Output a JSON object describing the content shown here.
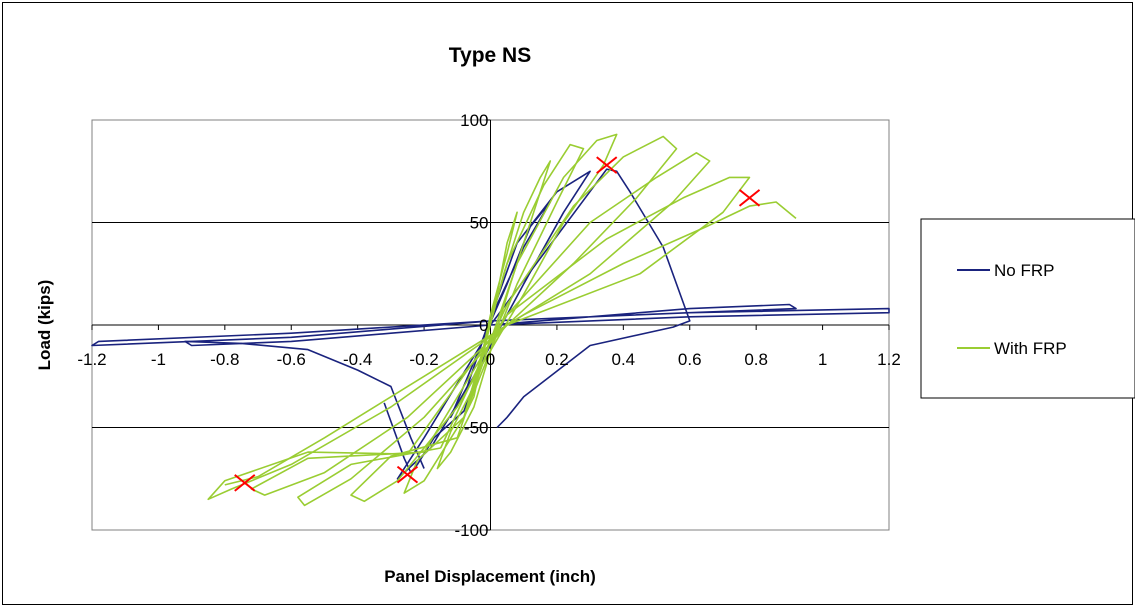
{
  "chart_data": {
    "type": "line",
    "title": "Type NS",
    "xlabel": "Panel Displacement (inch)",
    "ylabel": "Load (kips)",
    "xlim": [
      -1.2,
      1.2
    ],
    "ylim": [
      -100,
      100
    ],
    "x_ticks": [
      "-1.2",
      "-1",
      "-0.8",
      "-0.6",
      "-0.4",
      "-0.2",
      "0",
      "0.2",
      "0.4",
      "0.6",
      "0.8",
      "1",
      "1.2"
    ],
    "x_tick_values": [
      -1.2,
      -1,
      -0.8,
      -0.6,
      -0.4,
      -0.2,
      0,
      0.2,
      0.4,
      0.6,
      0.8,
      1,
      1.2
    ],
    "y_ticks": [
      "-100",
      "-50",
      "0",
      "50",
      "100"
    ],
    "y_tick_values": [
      -100,
      -50,
      0,
      50,
      100
    ],
    "grid": "horizontal",
    "legend_position": "right",
    "series": [
      {
        "name": "No FRP",
        "color": "#1a237e",
        "loops": [
          [
            [
              -0.02,
              -6
            ],
            [
              0.05,
              20
            ],
            [
              0.12,
              48
            ],
            [
              0.18,
              60
            ],
            [
              0.1,
              38
            ],
            [
              0.02,
              10
            ],
            [
              -0.05,
              -18
            ],
            [
              -0.12,
              -45
            ],
            [
              -0.07,
              -30
            ],
            [
              -0.02,
              -6
            ]
          ],
          [
            [
              -0.03,
              -10
            ],
            [
              0.08,
              40
            ],
            [
              0.2,
              65
            ],
            [
              0.3,
              75
            ],
            [
              0.22,
              55
            ],
            [
              0.1,
              20
            ],
            [
              -0.05,
              -25
            ],
            [
              -0.18,
              -60
            ],
            [
              -0.28,
              -75
            ],
            [
              -0.2,
              -55
            ],
            [
              -0.03,
              -10
            ]
          ],
          [
            [
              0.0,
              0
            ],
            [
              0.35,
              76
            ],
            [
              0.38,
              75
            ],
            [
              0.42,
              65
            ],
            [
              0.52,
              38
            ],
            [
              0.6,
              2
            ],
            [
              0.55,
              -1
            ],
            [
              0.3,
              -10
            ],
            [
              0.1,
              -35
            ],
            [
              0.05,
              -45
            ],
            [
              0.02,
              -50
            ]
          ],
          [
            [
              -0.2,
              -70
            ],
            [
              -0.24,
              -55
            ],
            [
              -0.3,
              -30
            ],
            [
              -0.4,
              -22
            ],
            [
              -0.55,
              -12
            ],
            [
              -0.75,
              -9
            ],
            [
              -0.92,
              -8
            ],
            [
              -0.9,
              -10
            ],
            [
              -0.6,
              -8
            ],
            [
              -0.3,
              -4
            ],
            [
              0.0,
              0
            ]
          ],
          [
            [
              0.0,
              0
            ],
            [
              0.3,
              4
            ],
            [
              0.6,
              8
            ],
            [
              0.9,
              10
            ],
            [
              0.92,
              8
            ],
            [
              0.6,
              6
            ],
            [
              0.3,
              4
            ],
            [
              0.0,
              2
            ],
            [
              -0.3,
              -2
            ],
            [
              -0.6,
              -6
            ],
            [
              -0.9,
              -8
            ],
            [
              -1.2,
              -10
            ],
            [
              -1.18,
              -8
            ],
            [
              -0.6,
              -4
            ],
            [
              0.0,
              2
            ],
            [
              0.6,
              6
            ],
            [
              1.2,
              8
            ],
            [
              1.2,
              6
            ],
            [
              0.6,
              4
            ],
            [
              0.0,
              0
            ]
          ],
          [
            [
              -0.32,
              -38
            ],
            [
              -0.26,
              -65
            ],
            [
              -0.24,
              -72
            ],
            [
              -0.22,
              -68
            ],
            [
              -0.17,
              -55
            ],
            [
              -0.08,
              -42
            ],
            [
              -0.03,
              -20
            ]
          ]
        ]
      },
      {
        "name": "With FRP",
        "color": "#9acd32",
        "loops": [
          [
            [
              -0.03,
              -20
            ],
            [
              0.02,
              15
            ],
            [
              0.05,
              40
            ],
            [
              0.08,
              55
            ],
            [
              0.05,
              35
            ],
            [
              0.0,
              5
            ],
            [
              -0.04,
              -25
            ],
            [
              -0.08,
              -45
            ],
            [
              -0.05,
              -35
            ],
            [
              -0.03,
              -20
            ]
          ],
          [
            [
              -0.05,
              -30
            ],
            [
              0.04,
              25
            ],
            [
              0.1,
              55
            ],
            [
              0.15,
              72
            ],
            [
              0.18,
              80
            ],
            [
              0.14,
              60
            ],
            [
              0.06,
              20
            ],
            [
              -0.05,
              -40
            ],
            [
              -0.12,
              -62
            ],
            [
              -0.16,
              -70
            ],
            [
              -0.12,
              -52
            ],
            [
              -0.05,
              -30
            ]
          ],
          [
            [
              -0.08,
              -45
            ],
            [
              0.05,
              30
            ],
            [
              0.16,
              68
            ],
            [
              0.24,
              88
            ],
            [
              0.28,
              86
            ],
            [
              0.2,
              60
            ],
            [
              0.08,
              20
            ],
            [
              -0.08,
              -45
            ],
            [
              -0.2,
              -76
            ],
            [
              -0.26,
              -82
            ],
            [
              -0.22,
              -66
            ],
            [
              -0.08,
              -45
            ]
          ],
          [
            [
              -0.1,
              -55
            ],
            [
              0.08,
              30
            ],
            [
              0.22,
              72
            ],
            [
              0.32,
              90
            ],
            [
              0.38,
              93
            ],
            [
              0.34,
              78
            ],
            [
              0.22,
              50
            ],
            [
              0.1,
              15
            ],
            [
              -0.1,
              -40
            ],
            [
              -0.28,
              -76
            ],
            [
              -0.38,
              -86
            ],
            [
              -0.42,
              -83
            ],
            [
              -0.3,
              -64
            ],
            [
              -0.1,
              -55
            ]
          ],
          [
            [
              -0.15,
              -60
            ],
            [
              0.05,
              10
            ],
            [
              0.25,
              58
            ],
            [
              0.4,
              82
            ],
            [
              0.52,
              92
            ],
            [
              0.56,
              86
            ],
            [
              0.44,
              62
            ],
            [
              0.25,
              30
            ],
            [
              0.05,
              0
            ],
            [
              -0.2,
              -45
            ],
            [
              -0.42,
              -75
            ],
            [
              -0.56,
              -88
            ],
            [
              -0.58,
              -84
            ],
            [
              -0.42,
              -68
            ],
            [
              -0.15,
              -60
            ]
          ],
          [
            [
              -0.2,
              -62
            ],
            [
              0.05,
              5
            ],
            [
              0.3,
              50
            ],
            [
              0.5,
              72
            ],
            [
              0.62,
              84
            ],
            [
              0.66,
              80
            ],
            [
              0.55,
              60
            ],
            [
              0.3,
              25
            ],
            [
              0.05,
              0
            ],
            [
              -0.25,
              -45
            ],
            [
              -0.5,
              -72
            ],
            [
              -0.68,
              -83
            ],
            [
              -0.72,
              -80
            ],
            [
              -0.55,
              -65
            ],
            [
              -0.2,
              -62
            ]
          ],
          [
            [
              -0.25,
              -63
            ],
            [
              0.05,
              5
            ],
            [
              0.35,
              42
            ],
            [
              0.58,
              62
            ],
            [
              0.72,
              72
            ],
            [
              0.78,
              72
            ],
            [
              0.7,
              55
            ],
            [
              0.45,
              25
            ],
            [
              0.05,
              0
            ],
            [
              -0.3,
              -40
            ],
            [
              -0.6,
              -68
            ],
            [
              -0.78,
              -80
            ],
            [
              -0.85,
              -85
            ],
            [
              -0.8,
              -76
            ],
            [
              -0.55,
              -62
            ],
            [
              -0.25,
              -63
            ]
          ],
          [
            [
              -0.8,
              -78
            ],
            [
              -0.7,
              -74
            ],
            [
              -0.5,
              -55
            ],
            [
              -0.2,
              -25
            ],
            [
              0.1,
              5
            ],
            [
              0.4,
              30
            ],
            [
              0.65,
              48
            ],
            [
              0.78,
              58
            ],
            [
              0.86,
              60
            ],
            [
              0.92,
              52
            ]
          ]
        ]
      }
    ],
    "failure_markers": [
      [
        0.35,
        78
      ],
      [
        0.78,
        62
      ],
      [
        -0.74,
        -77
      ],
      [
        -0.25,
        -73
      ]
    ],
    "failure_marker_color": "#ff0000"
  }
}
